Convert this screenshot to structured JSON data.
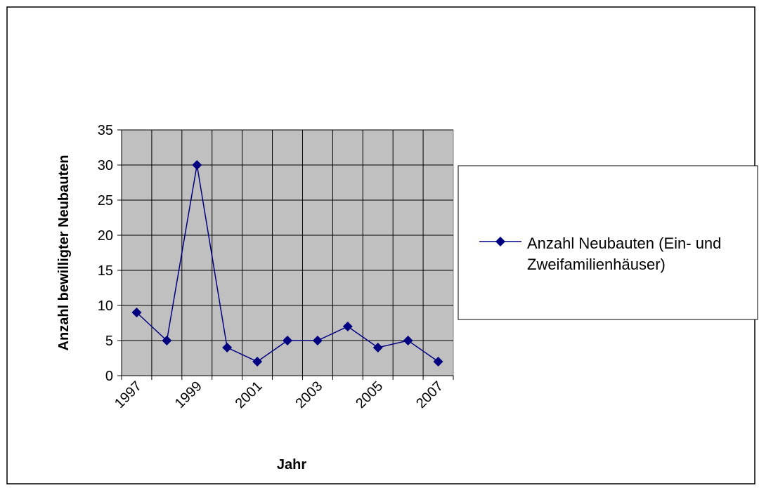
{
  "chart_data": {
    "type": "line",
    "xlabel": "Jahr",
    "ylabel": "Anzahl bewilligter Neubauten",
    "categories": [
      "1997",
      null,
      "1999",
      null,
      "2001",
      null,
      "2003",
      null,
      "2005",
      null,
      "2007"
    ],
    "series": [
      {
        "name": "Anzahl Neubauten (Ein- und Zweifamilienhäuser)",
        "color": "#000080",
        "values": [
          9,
          5,
          30,
          4,
          2,
          5,
          5,
          7,
          4,
          5,
          2
        ]
      }
    ],
    "ylim": [
      0,
      35
    ],
    "yticks": [
      0,
      5,
      10,
      15,
      20,
      25,
      30,
      35
    ],
    "grid": true,
    "legend": "right"
  }
}
